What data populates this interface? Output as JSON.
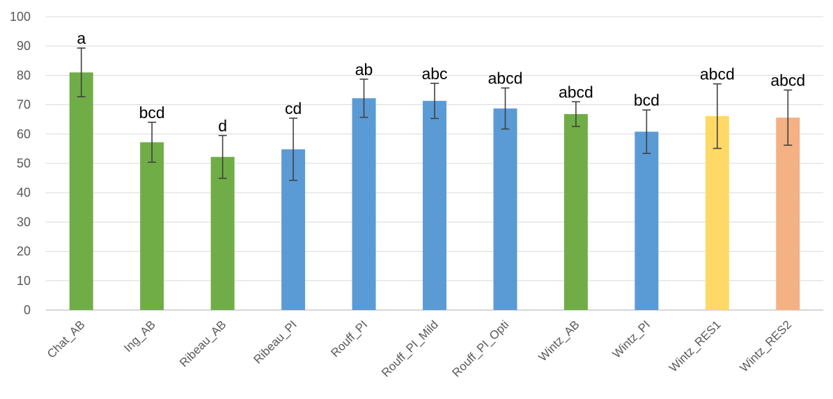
{
  "chart_data": {
    "type": "bar",
    "title": "",
    "xlabel": "",
    "ylabel": "",
    "ylim": [
      0,
      100
    ],
    "yticks": [
      "0",
      "10",
      "20",
      "30",
      "40",
      "50",
      "60",
      "70",
      "80",
      "90",
      "100"
    ],
    "grid": true,
    "legend": "none",
    "categories": [
      "Chat_AB",
      "Ing_AB",
      "Ribeau_AB",
      "Ribeau_PI",
      "Rouff_PI",
      "Rouff_PI_Mild",
      "Rouff_PI_Opti",
      "Wintz_AB",
      "Wintz_PI",
      "Wintz_RES1",
      "Wintz_RES2"
    ],
    "values": [
      81,
      57.2,
      52.2,
      54.8,
      72.2,
      71.3,
      68.7,
      66.8,
      60.8,
      66.1,
      65.6
    ],
    "error": [
      8.3,
      6.8,
      7.3,
      10.6,
      6.5,
      6.0,
      7.0,
      4.2,
      7.4,
      11.0,
      9.4
    ],
    "letters": [
      "a",
      "bcd",
      "d",
      "cd",
      "ab",
      "abc",
      "abcd",
      "abcd",
      "bcd",
      "abcd",
      "abcd"
    ],
    "colors": [
      "#70ad47",
      "#70ad47",
      "#70ad47",
      "#5b9bd5",
      "#5b9bd5",
      "#5b9bd5",
      "#5b9bd5",
      "#70ad47",
      "#5b9bd5",
      "#ffd966",
      "#f4b183"
    ]
  }
}
